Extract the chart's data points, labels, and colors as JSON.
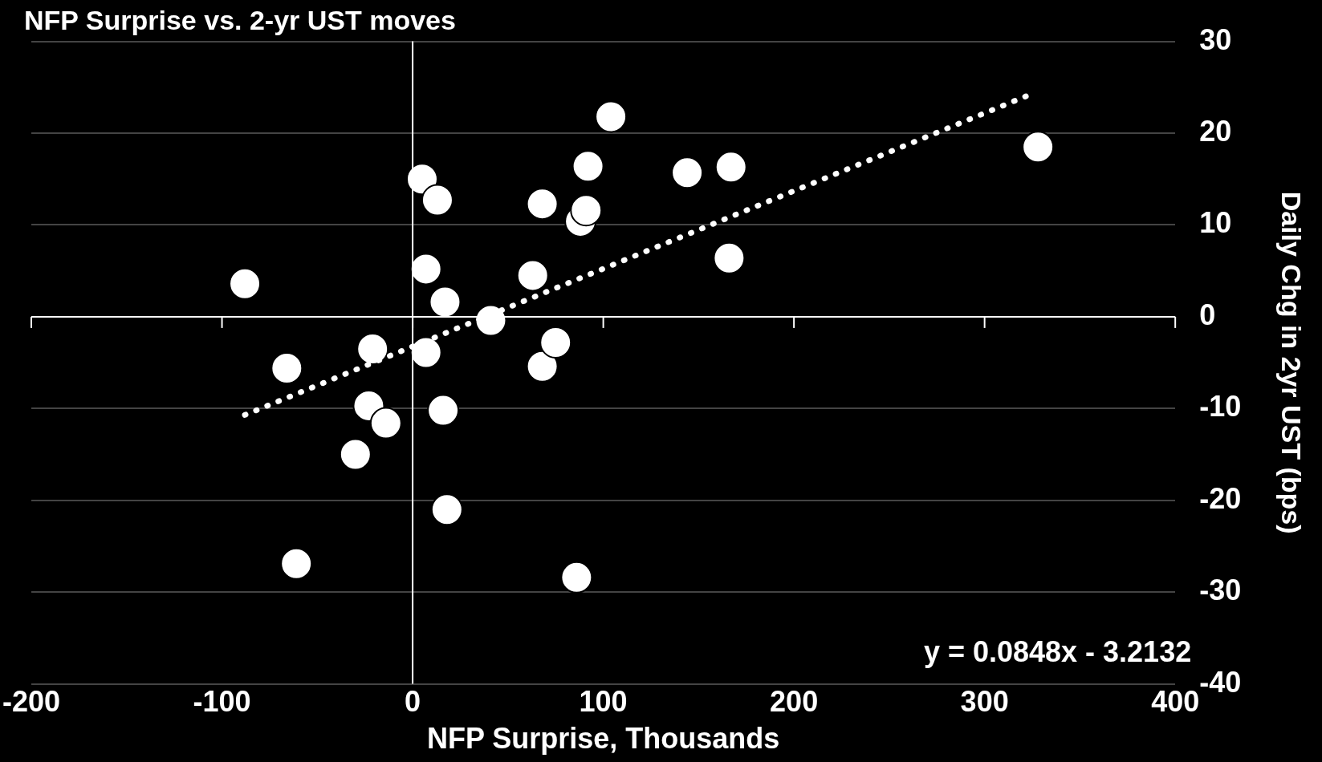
{
  "chart_data": {
    "type": "scatter",
    "title": "NFP Surprise vs. 2-yr UST moves",
    "xlabel": "NFP Surprise, Thousands",
    "ylabel": "Daily Chg in 2yr UST (bps)",
    "xlim": [
      -200,
      400
    ],
    "xticks": [
      -200,
      -100,
      0,
      100,
      200,
      300,
      400
    ],
    "ylim": [
      -40,
      30
    ],
    "yticks": [
      -40,
      -30,
      -20,
      -10,
      0,
      10,
      20,
      30
    ],
    "grid": "y",
    "marker": "circle",
    "legend": false,
    "ref_lines": [
      {
        "axis": "x",
        "value": 0,
        "color": "#ffffff"
      }
    ],
    "annotations": [
      "y = 0.0848x - 3.2132"
    ],
    "series": [
      {
        "color": "#ffffff",
        "x": [
          -88,
          -66,
          -61,
          -21,
          -23,
          -14,
          -30,
          5,
          13,
          7,
          17,
          7,
          16,
          18,
          41,
          63,
          68,
          68,
          75,
          86,
          88,
          91,
          92,
          104,
          144,
          167,
          166,
          328
        ],
        "values": [
          3.6,
          -5.6,
          -26.9,
          -3.5,
          -9.7,
          -11.6,
          -15,
          15,
          12.7,
          5.2,
          1.6,
          -3.9,
          -10.2,
          -21,
          -0.4,
          4.5,
          12.3,
          -5.4,
          -2.8,
          -28.4,
          10.4,
          11.6,
          16.4,
          21.8,
          15.7,
          16.3,
          6.4,
          18.5
        ]
      },
      {
        "type": "line",
        "color": "#ffffff",
        "line_style": "dotted",
        "marker": "none",
        "x": [
          -88,
          325
        ],
        "values": [
          -10.7,
          24.3
        ]
      }
    ]
  }
}
